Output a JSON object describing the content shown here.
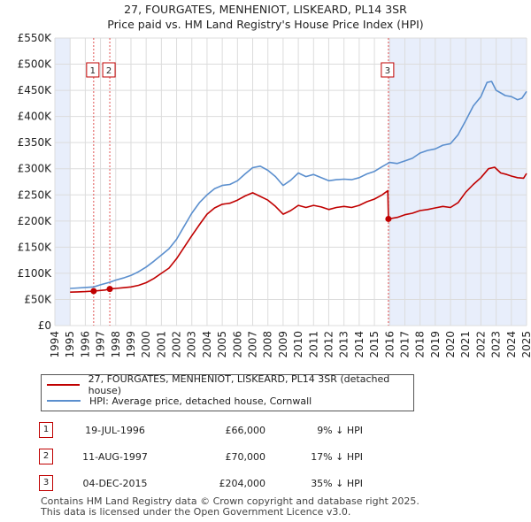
{
  "title_line1": "27, FOURGATES, MENHENIOT, LISKEARD, PL14 3SR",
  "title_line2": "Price paid vs. HM Land Registry's House Price Index (HPI)",
  "chart_data": {
    "type": "line",
    "xlim": [
      1994,
      2025
    ],
    "ylim": [
      0,
      550000
    ],
    "y_ticks": [
      0,
      50000,
      100000,
      150000,
      200000,
      250000,
      300000,
      350000,
      400000,
      450000,
      500000,
      550000
    ],
    "y_tick_labels": [
      "£0",
      "£50K",
      "£100K",
      "£150K",
      "£200K",
      "£250K",
      "£300K",
      "£350K",
      "£400K",
      "£450K",
      "£500K",
      "£550K"
    ],
    "x_ticks": [
      1994,
      1995,
      1996,
      1997,
      1998,
      1999,
      2000,
      2001,
      2002,
      2003,
      2004,
      2005,
      2006,
      2007,
      2008,
      2009,
      2010,
      2011,
      2012,
      2013,
      2014,
      2015,
      2016,
      2017,
      2018,
      2019,
      2020,
      2021,
      2022,
      2023,
      2024,
      2025
    ],
    "grid": true,
    "shaded_ranges": [
      [
        1994,
        1995.0
      ],
      [
        2015.92,
        2025
      ]
    ],
    "series": [
      {
        "name": "27, FOURGATES, MENHENIOT, LISKEARD, PL14 3SR (detached house)",
        "color": "#c00000",
        "x": [
          1995.0,
          1995.5,
          1996.0,
          1996.55,
          1996.9,
          1997.3,
          1997.61,
          1998.0,
          1998.5,
          1999.0,
          1999.5,
          2000.0,
          2000.5,
          2001.0,
          2001.5,
          2002.0,
          2002.5,
          2003.0,
          2003.5,
          2004.0,
          2004.5,
          2005.0,
          2005.5,
          2006.0,
          2006.5,
          2007.0,
          2007.5,
          2008.0,
          2008.5,
          2009.0,
          2009.5,
          2010.0,
          2010.5,
          2011.0,
          2011.5,
          2012.0,
          2012.5,
          2013.0,
          2013.5,
          2014.0,
          2014.5,
          2015.0,
          2015.5,
          2015.88,
          2015.92,
          2016.5,
          2017.0,
          2017.5,
          2018.0,
          2018.5,
          2019.0,
          2019.5,
          2020.0,
          2020.5,
          2021.0,
          2021.5,
          2022.0,
          2022.5,
          2022.9,
          2023.3,
          2023.7,
          2024.0,
          2024.4,
          2024.8,
          2025.0
        ],
        "y": [
          64000,
          64500,
          65000,
          66000,
          67000,
          68000,
          70000,
          71000,
          72500,
          74000,
          77000,
          82000,
          90000,
          100000,
          110000,
          128000,
          150000,
          172000,
          193000,
          213000,
          225000,
          232000,
          234000,
          240000,
          248000,
          254000,
          247000,
          240000,
          228000,
          213000,
          220000,
          230000,
          226000,
          230000,
          227000,
          222000,
          226000,
          228000,
          226000,
          230000,
          237000,
          242000,
          250000,
          258000,
          204000,
          207000,
          212000,
          215000,
          220000,
          222000,
          225000,
          228000,
          226000,
          235000,
          255000,
          270000,
          283000,
          300000,
          303000,
          292000,
          289000,
          286000,
          283000,
          282000,
          291000
        ]
      },
      {
        "name": "HPI: Average price, detached house, Cornwall",
        "color": "#5b8fce",
        "x": [
          1995.0,
          1995.5,
          1996.0,
          1996.55,
          1997.0,
          1997.61,
          1998.0,
          1998.5,
          1999.0,
          1999.5,
          2000.0,
          2000.5,
          2001.0,
          2001.5,
          2002.0,
          2002.5,
          2003.0,
          2003.5,
          2004.0,
          2004.5,
          2005.0,
          2005.5,
          2006.0,
          2006.5,
          2007.0,
          2007.5,
          2008.0,
          2008.5,
          2009.0,
          2009.5,
          2010.0,
          2010.5,
          2011.0,
          2011.5,
          2012.0,
          2012.5,
          2013.0,
          2013.5,
          2014.0,
          2014.5,
          2015.0,
          2015.5,
          2016.0,
          2016.5,
          2017.0,
          2017.5,
          2018.0,
          2018.5,
          2019.0,
          2019.5,
          2020.0,
          2020.5,
          2021.0,
          2021.5,
          2022.0,
          2022.4,
          2022.7,
          2023.0,
          2023.3,
          2023.6,
          2024.0,
          2024.4,
          2024.7,
          2025.0
        ],
        "y": [
          71000,
          72000,
          73000,
          74000,
          78000,
          83000,
          87000,
          91000,
          96000,
          103000,
          112000,
          123000,
          135000,
          147000,
          165000,
          190000,
          215000,
          235000,
          250000,
          262000,
          268000,
          270000,
          277000,
          290000,
          302000,
          305000,
          297000,
          285000,
          268000,
          278000,
          292000,
          285000,
          289000,
          283000,
          277000,
          279000,
          280000,
          279000,
          283000,
          290000,
          295000,
          304000,
          312000,
          310000,
          315000,
          320000,
          330000,
          335000,
          338000,
          345000,
          348000,
          365000,
          392000,
          420000,
          438000,
          465000,
          467000,
          450000,
          445000,
          440000,
          438000,
          432000,
          435000,
          448000
        ]
      }
    ],
    "sale_markers": [
      {
        "label": "1",
        "x": 1996.55,
        "y": 66000
      },
      {
        "label": "2",
        "x": 1997.61,
        "y": 70000
      },
      {
        "label": "3",
        "x": 2015.92,
        "y": 204000
      }
    ]
  },
  "legend": {
    "red_label": "27, FOURGATES, MENHENIOT, LISKEARD, PL14 3SR (detached house)",
    "blue_label": "HPI: Average price, detached house, Cornwall"
  },
  "transactions": [
    {
      "num": "1",
      "date": "19-JUL-1996",
      "price": "£66,000",
      "hpi": "9% ↓ HPI"
    },
    {
      "num": "2",
      "date": "11-AUG-1997",
      "price": "£70,000",
      "hpi": "17% ↓ HPI"
    },
    {
      "num": "3",
      "date": "04-DEC-2015",
      "price": "£204,000",
      "hpi": "35% ↓ HPI"
    }
  ],
  "footer_line1": "Contains HM Land Registry data © Crown copyright and database right 2025.",
  "footer_line2": "This data is licensed under the Open Government Licence v3.0."
}
